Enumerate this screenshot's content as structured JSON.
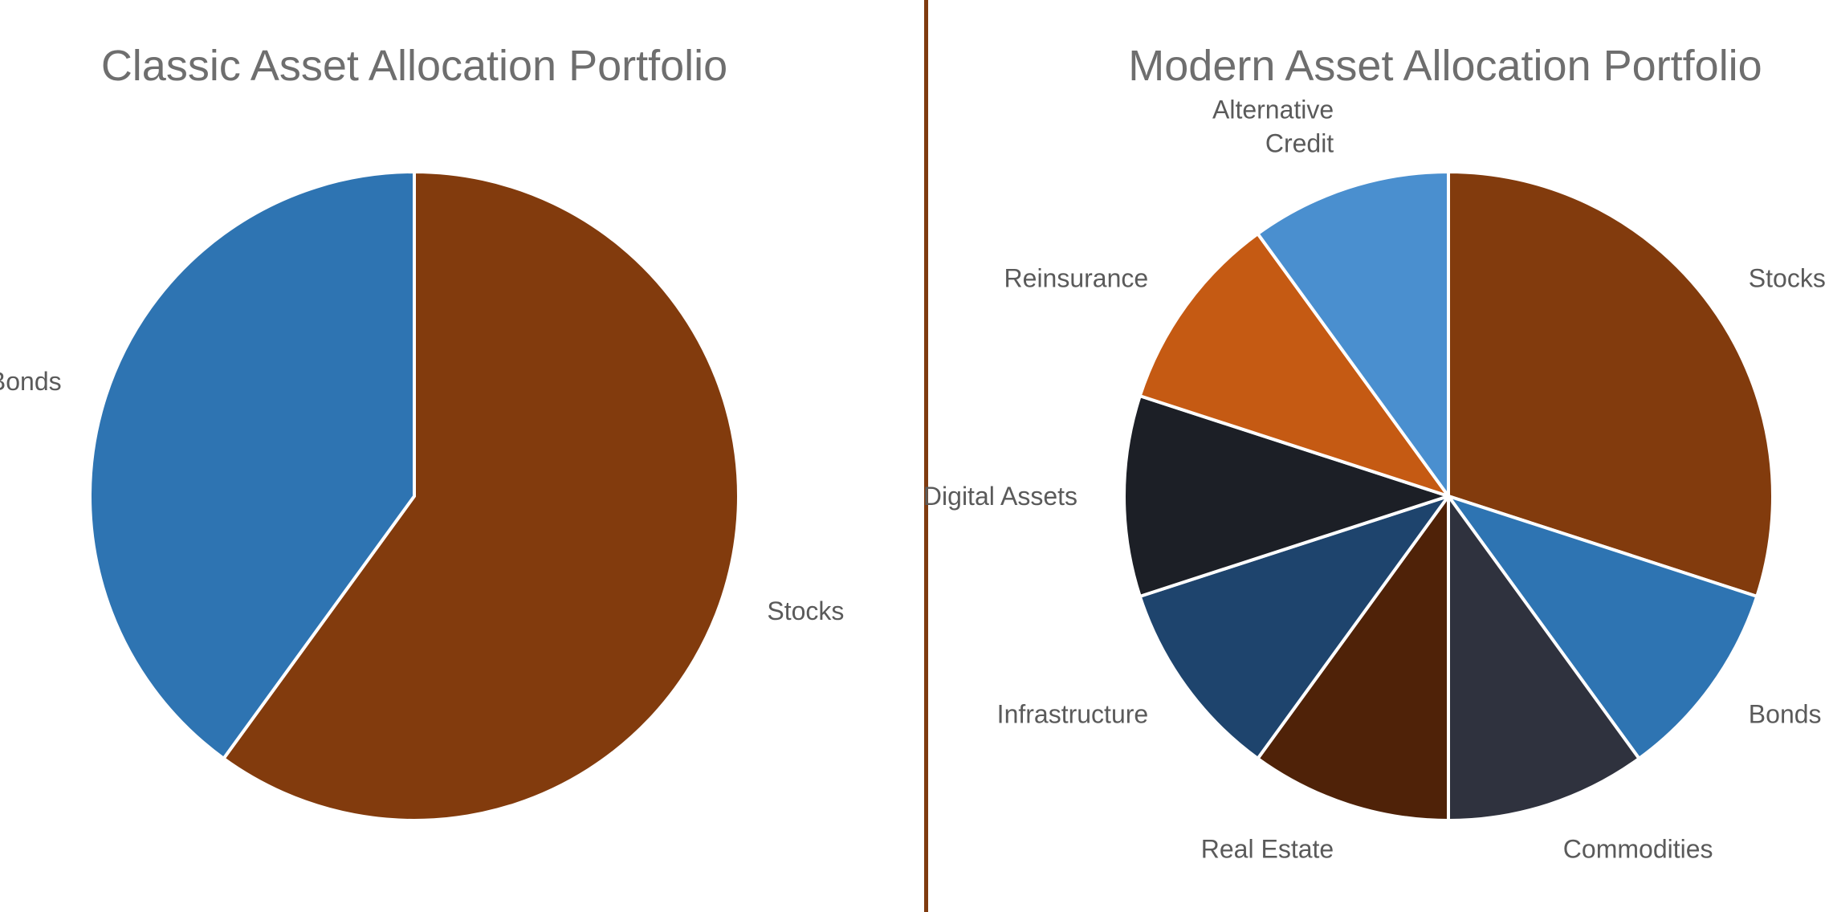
{
  "colors": {
    "divider": "#7F3B0F",
    "title": "#6e6e6e",
    "label": "#5a5a5a"
  },
  "chart_data": [
    {
      "type": "pie",
      "title": "Classic Asset Allocation Portfolio",
      "start_angle_deg": 0,
      "direction": "clockwise",
      "slices": [
        {
          "label": "Stocks",
          "value": 60,
          "color": "#823B0D"
        },
        {
          "label": "Bonds",
          "value": 40,
          "color": "#2E74B2"
        }
      ]
    },
    {
      "type": "pie",
      "title": "Modern Asset Allocation Portfolio",
      "start_angle_deg": 0,
      "direction": "clockwise",
      "slices": [
        {
          "label": "Stocks",
          "value": 30,
          "color": "#823B0D"
        },
        {
          "label": "Bonds",
          "value": 10,
          "color": "#2E74B2"
        },
        {
          "label": "Commodities",
          "value": 10,
          "color": "#2F323E"
        },
        {
          "label": "Real Estate",
          "value": 10,
          "color": "#4F2208"
        },
        {
          "label": "Infrastructure",
          "value": 10,
          "color": "#1E446D"
        },
        {
          "label": "Digital Assets",
          "value": 10,
          "color": "#1C1F26"
        },
        {
          "label": "Reinsurance",
          "value": 10,
          "color": "#C55A13"
        },
        {
          "label": "Alternative Credit",
          "value": 10,
          "color": "#4A8FCF"
        }
      ]
    }
  ]
}
